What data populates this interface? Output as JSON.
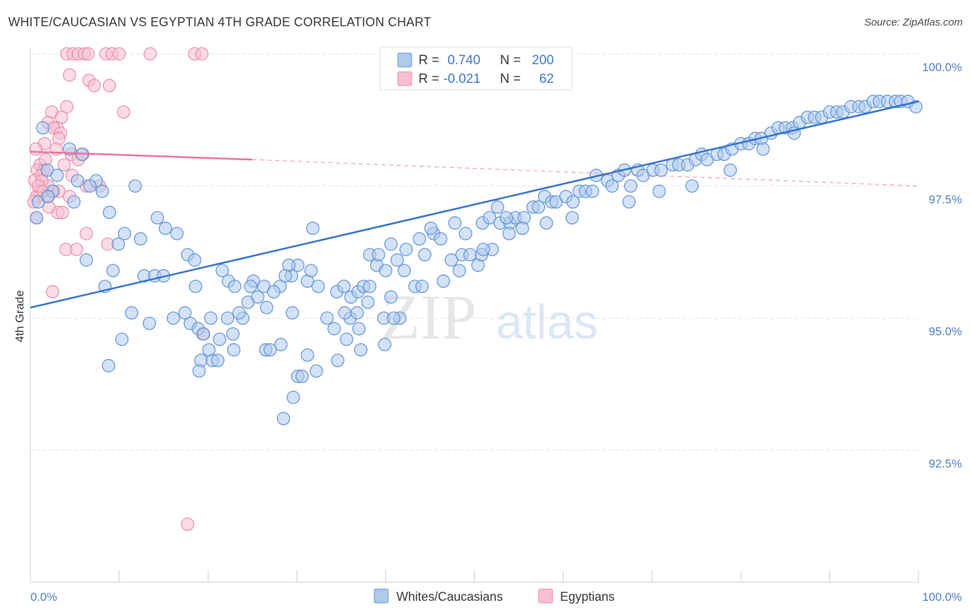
{
  "header": {
    "title": "WHITE/CAUCASIAN VS EGYPTIAN 4TH GRADE CORRELATION CHART",
    "source": "Source: ZipAtlas.com"
  },
  "watermark": {
    "zip": "ZIP",
    "atlas": "atlas"
  },
  "colors": {
    "blue_fill": "#aecbee",
    "blue_stroke": "#5b8fd4",
    "blue_line": "#2f6fd0",
    "pink_fill": "#f7bfd0",
    "pink_stroke": "#e98aa9",
    "pink_line": "#e8709a",
    "grid": "#e2e2e2",
    "tick_text": "#4a7cc4"
  },
  "legend": {
    "rows": [
      {
        "r_label": "R =",
        "r_value": "0.740",
        "n_label": "N =",
        "n_value": "200"
      },
      {
        "r_label": "R =",
        "r_value": "-0.021",
        "n_label": "N =",
        "n_value": "62"
      }
    ]
  },
  "bottom_legend": [
    {
      "label": "Whites/Caucasians"
    },
    {
      "label": "Egyptians"
    }
  ],
  "chart_data": {
    "type": "scatter",
    "title": "WHITE/CAUCASIAN VS EGYPTIAN 4TH GRADE CORRELATION CHART",
    "xlabel": "",
    "ylabel": "4th Grade",
    "xlim": [
      0,
      100
    ],
    "ylim": [
      90.2,
      100.6
    ],
    "x_tick_labels": [
      "0.0%",
      "100.0%"
    ],
    "y_ticks": [
      92.5,
      95.0,
      97.5,
      100.0
    ],
    "y_tick_labels": [
      "92.5%",
      "95.0%",
      "97.5%",
      "100.0%"
    ],
    "grid": true,
    "legend_placement": "top-center",
    "series": [
      {
        "name": "Whites/Caucasians",
        "R": 0.74,
        "N": 200,
        "trend": {
          "x": [
            0,
            100
          ],
          "y": [
            95.2,
            99.1
          ]
        },
        "points": [
          [
            1.4,
            98.6
          ],
          [
            4.4,
            98.2
          ],
          [
            5.8,
            98.1
          ],
          [
            1.9,
            97.8
          ],
          [
            3.0,
            97.7
          ],
          [
            5.3,
            97.6
          ],
          [
            7.4,
            97.6
          ],
          [
            2.5,
            97.4
          ],
          [
            6.7,
            97.5
          ],
          [
            11.8,
            97.5
          ],
          [
            8.1,
            97.4
          ],
          [
            0.9,
            97.2
          ],
          [
            2.0,
            97.3
          ],
          [
            4.9,
            97.2
          ],
          [
            0.7,
            96.9
          ],
          [
            8.9,
            97.0
          ],
          [
            14.3,
            96.9
          ],
          [
            15.2,
            96.7
          ],
          [
            16.5,
            96.6
          ],
          [
            10.6,
            96.6
          ],
          [
            12.4,
            96.5
          ],
          [
            9.9,
            96.4
          ],
          [
            17.7,
            96.2
          ],
          [
            18.5,
            96.1
          ],
          [
            6.3,
            96.1
          ],
          [
            9.3,
            95.9
          ],
          [
            12.8,
            95.8
          ],
          [
            14.0,
            95.8
          ],
          [
            15.0,
            95.8
          ],
          [
            8.4,
            95.6
          ],
          [
            18.6,
            95.6
          ],
          [
            21.6,
            95.9
          ],
          [
            22.3,
            95.7
          ],
          [
            23.0,
            95.6
          ],
          [
            25.1,
            95.7
          ],
          [
            26.3,
            95.6
          ],
          [
            28.1,
            95.6
          ],
          [
            29.4,
            95.8
          ],
          [
            31.2,
            95.7
          ],
          [
            30.1,
            96.0
          ],
          [
            29.1,
            96.0
          ],
          [
            31.6,
            95.9
          ],
          [
            32.4,
            95.6
          ],
          [
            31.8,
            96.7
          ],
          [
            34.5,
            95.5
          ],
          [
            35.3,
            95.6
          ],
          [
            36.1,
            95.4
          ],
          [
            36.9,
            95.5
          ],
          [
            37.5,
            95.6
          ],
          [
            38.2,
            95.6
          ],
          [
            39.0,
            96.0
          ],
          [
            40.0,
            95.9
          ],
          [
            41.3,
            96.1
          ],
          [
            42.1,
            95.9
          ],
          [
            43.3,
            95.6
          ],
          [
            38.2,
            96.2
          ],
          [
            39.2,
            96.2
          ],
          [
            40.6,
            96.4
          ],
          [
            42.3,
            96.3
          ],
          [
            43.8,
            96.5
          ],
          [
            45.4,
            96.6
          ],
          [
            46.2,
            96.5
          ],
          [
            45.1,
            96.7
          ],
          [
            47.8,
            96.8
          ],
          [
            49.0,
            96.6
          ],
          [
            50.9,
            96.8
          ],
          [
            51.7,
            96.9
          ],
          [
            52.9,
            96.8
          ],
          [
            54.0,
            96.8
          ],
          [
            54.6,
            96.9
          ],
          [
            47.4,
            96.1
          ],
          [
            48.6,
            96.2
          ],
          [
            49.5,
            96.2
          ],
          [
            50.4,
            96.0
          ],
          [
            50.8,
            96.2
          ],
          [
            52.0,
            96.3
          ],
          [
            52.6,
            97.1
          ],
          [
            53.6,
            96.9
          ],
          [
            55.6,
            96.9
          ],
          [
            56.6,
            97.1
          ],
          [
            57.2,
            97.1
          ],
          [
            57.9,
            97.3
          ],
          [
            58.7,
            97.2
          ],
          [
            59.2,
            97.2
          ],
          [
            60.3,
            97.3
          ],
          [
            61.1,
            97.2
          ],
          [
            61.8,
            97.4
          ],
          [
            62.5,
            97.4
          ],
          [
            63.3,
            97.4
          ],
          [
            63.7,
            97.7
          ],
          [
            65.0,
            97.6
          ],
          [
            65.5,
            97.5
          ],
          [
            66.2,
            97.7
          ],
          [
            66.9,
            97.8
          ],
          [
            67.6,
            97.5
          ],
          [
            68.4,
            97.8
          ],
          [
            69.0,
            97.7
          ],
          [
            70.1,
            97.8
          ],
          [
            71.0,
            97.8
          ],
          [
            72.3,
            97.9
          ],
          [
            73.0,
            97.9
          ],
          [
            74.0,
            97.9
          ],
          [
            74.9,
            98.0
          ],
          [
            75.6,
            98.1
          ],
          [
            76.2,
            98.0
          ],
          [
            77.3,
            98.1
          ],
          [
            78.1,
            98.1
          ],
          [
            79.0,
            98.2
          ],
          [
            80.0,
            98.3
          ],
          [
            80.9,
            98.3
          ],
          [
            81.6,
            98.4
          ],
          [
            82.3,
            98.4
          ],
          [
            83.4,
            98.5
          ],
          [
            84.2,
            98.6
          ],
          [
            85.0,
            98.6
          ],
          [
            85.8,
            98.6
          ],
          [
            86.6,
            98.7
          ],
          [
            87.5,
            98.8
          ],
          [
            88.3,
            98.8
          ],
          [
            89.1,
            98.8
          ],
          [
            90.0,
            98.9
          ],
          [
            90.8,
            98.9
          ],
          [
            91.5,
            98.9
          ],
          [
            92.4,
            99.0
          ],
          [
            93.3,
            99.0
          ],
          [
            94.0,
            99.0
          ],
          [
            94.9,
            99.1
          ],
          [
            95.6,
            99.1
          ],
          [
            96.5,
            99.1
          ],
          [
            97.4,
            99.1
          ],
          [
            98.0,
            99.1
          ],
          [
            98.8,
            99.1
          ],
          [
            99.7,
            99.0
          ],
          [
            86.0,
            98.5
          ],
          [
            82.5,
            98.2
          ],
          [
            78.8,
            97.8
          ],
          [
            74.5,
            97.5
          ],
          [
            70.8,
            97.4
          ],
          [
            67.4,
            97.2
          ],
          [
            61.0,
            96.9
          ],
          [
            58.1,
            96.8
          ],
          [
            55.4,
            96.7
          ],
          [
            53.9,
            96.6
          ],
          [
            51.0,
            96.3
          ],
          [
            48.3,
            95.9
          ],
          [
            46.5,
            95.7
          ],
          [
            44.1,
            95.6
          ],
          [
            41.6,
            95.0
          ],
          [
            40.6,
            95.4
          ],
          [
            38.0,
            95.3
          ],
          [
            33.4,
            95.0
          ],
          [
            36.0,
            95.0
          ],
          [
            35.6,
            94.6
          ],
          [
            39.8,
            95.0
          ],
          [
            37.2,
            94.4
          ],
          [
            40.9,
            95.0
          ],
          [
            44.4,
            96.2
          ],
          [
            29.5,
            95.1
          ],
          [
            28.7,
            95.8
          ],
          [
            27.4,
            95.5
          ],
          [
            23.9,
            95.0
          ],
          [
            24.5,
            95.3
          ],
          [
            22.2,
            95.0
          ],
          [
            20.3,
            95.0
          ],
          [
            18.0,
            94.9
          ],
          [
            17.4,
            95.1
          ],
          [
            16.1,
            95.0
          ],
          [
            13.4,
            94.9
          ],
          [
            11.4,
            95.1
          ],
          [
            10.3,
            94.6
          ],
          [
            8.8,
            94.1
          ],
          [
            19.2,
            94.2
          ],
          [
            20.5,
            94.2
          ],
          [
            21.1,
            94.2
          ],
          [
            22.9,
            94.4
          ],
          [
            26.5,
            94.4
          ],
          [
            27.0,
            94.4
          ],
          [
            31.2,
            94.3
          ],
          [
            30.1,
            93.9
          ],
          [
            30.6,
            93.9
          ],
          [
            29.6,
            93.5
          ],
          [
            28.5,
            93.1
          ],
          [
            32.2,
            94.0
          ],
          [
            18.9,
            94.8
          ],
          [
            19.5,
            94.7
          ],
          [
            28.2,
            94.5
          ],
          [
            39.9,
            94.5
          ],
          [
            34.6,
            94.2
          ],
          [
            36.8,
            95.1
          ],
          [
            35.4,
            95.1
          ],
          [
            34.2,
            94.8
          ],
          [
            37.0,
            94.8
          ],
          [
            24.8,
            95.6
          ],
          [
            25.6,
            95.4
          ],
          [
            26.6,
            95.2
          ],
          [
            23.5,
            95.1
          ],
          [
            22.8,
            94.7
          ],
          [
            21.3,
            94.6
          ],
          [
            20.1,
            94.4
          ],
          [
            19.0,
            94.0
          ]
        ]
      },
      {
        "name": "Egyptians",
        "R": -0.021,
        "N": 62,
        "trend": {
          "x": [
            0,
            25
          ],
          "y": [
            98.15,
            98.0
          ]
        },
        "trend_extension": {
          "x": [
            25,
            100
          ],
          "y": [
            98.0,
            97.5
          ]
        },
        "points": [
          [
            4.1,
            100.0
          ],
          [
            4.8,
            100.0
          ],
          [
            5.4,
            100.0
          ],
          [
            6.1,
            100.0
          ],
          [
            6.5,
            100.0
          ],
          [
            8.5,
            100.0
          ],
          [
            9.2,
            100.0
          ],
          [
            10.0,
            100.0
          ],
          [
            13.5,
            100.0
          ],
          [
            18.5,
            100.0
          ],
          [
            19.3,
            100.0
          ],
          [
            4.4,
            99.6
          ],
          [
            6.6,
            99.5
          ],
          [
            7.2,
            99.4
          ],
          [
            8.9,
            99.4
          ],
          [
            4.1,
            99.0
          ],
          [
            2.4,
            98.9
          ],
          [
            3.5,
            98.8
          ],
          [
            10.5,
            98.9
          ],
          [
            2.0,
            98.7
          ],
          [
            3.0,
            98.6
          ],
          [
            2.6,
            98.6
          ],
          [
            3.4,
            98.5
          ],
          [
            3.2,
            98.4
          ],
          [
            1.6,
            98.3
          ],
          [
            0.6,
            98.2
          ],
          [
            4.6,
            98.1
          ],
          [
            5.4,
            98.0
          ],
          [
            1.1,
            97.9
          ],
          [
            0.8,
            97.8
          ],
          [
            1.5,
            97.8
          ],
          [
            1.2,
            97.7
          ],
          [
            0.5,
            97.6
          ],
          [
            2.0,
            97.5
          ],
          [
            2.6,
            97.4
          ],
          [
            3.2,
            97.4
          ],
          [
            6.3,
            97.5
          ],
          [
            7.8,
            97.5
          ],
          [
            1.0,
            97.4
          ],
          [
            0.7,
            97.3
          ],
          [
            1.9,
            97.3
          ],
          [
            4.4,
            97.3
          ],
          [
            3.1,
            97.0
          ],
          [
            3.6,
            97.0
          ],
          [
            0.7,
            96.9
          ],
          [
            6.3,
            96.6
          ],
          [
            8.7,
            96.4
          ],
          [
            4.0,
            96.3
          ],
          [
            5.2,
            96.3
          ],
          [
            2.5,
            95.5
          ],
          [
            19.4,
            94.7
          ],
          [
            17.7,
            91.1
          ],
          [
            1.3,
            97.6
          ],
          [
            2.1,
            97.1
          ],
          [
            3.8,
            97.9
          ],
          [
            0.9,
            97.5
          ],
          [
            1.7,
            98.0
          ],
          [
            5.9,
            98.1
          ],
          [
            2.9,
            98.2
          ],
          [
            4.7,
            97.7
          ],
          [
            0.4,
            97.2
          ],
          [
            1.4,
            97.4
          ]
        ]
      }
    ]
  }
}
